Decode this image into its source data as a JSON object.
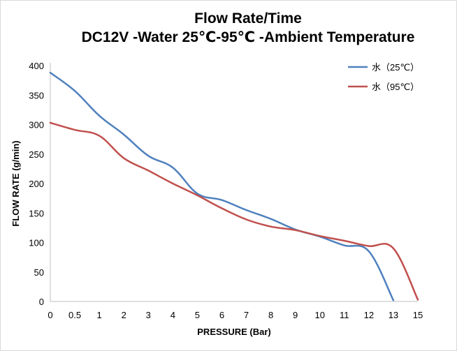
{
  "chart_data": {
    "type": "line",
    "title": "Flow Rate/Time",
    "subtitle": "DC12V -Water 25℃-95℃ -Ambient Temperature",
    "xlabel": "PRESSURE (Bar)",
    "ylabel": "FLOW RATE (g/min)",
    "ylim": [
      0,
      400
    ],
    "y_ticks": [
      0,
      50,
      100,
      150,
      200,
      250,
      300,
      350,
      400
    ],
    "categories": [
      "0",
      "0.5",
      "1",
      "2",
      "3",
      "4",
      "5",
      "6",
      "7",
      "8",
      "9",
      "10",
      "11",
      "12",
      "13",
      "15"
    ],
    "legend_position": "top-right",
    "grid": false,
    "series": [
      {
        "name": "水（25℃）",
        "color": "#4f81bd",
        "values": [
          388,
          357,
          315,
          283,
          247,
          227,
          183,
          172,
          155,
          140,
          122,
          110,
          95,
          85,
          2,
          null
        ]
      },
      {
        "name": "水（95℃）",
        "color": "#c0504d",
        "values": [
          303,
          291,
          281,
          243,
          222,
          200,
          180,
          158,
          139,
          127,
          121,
          111,
          103,
          94,
          90,
          3
        ]
      }
    ]
  }
}
